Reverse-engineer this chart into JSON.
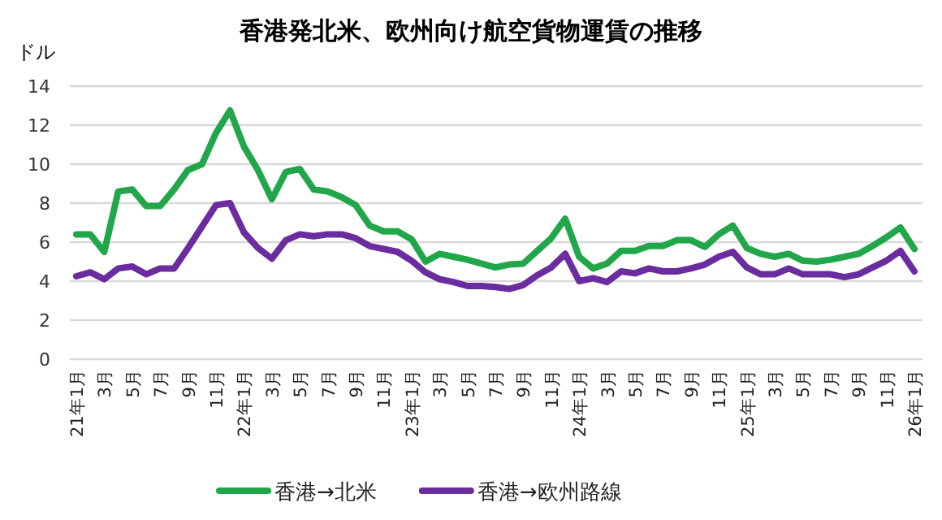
{
  "chart_data": {
    "type": "line",
    "title": "香港発北米、欧州向け航空貨物運賃の推移",
    "ylabel": "ドル",
    "categories": [
      "21年1月",
      null,
      "3月",
      null,
      "5月",
      null,
      "7月",
      null,
      "9月",
      null,
      "11月",
      null,
      "22年1月",
      null,
      "3月",
      null,
      "5月",
      null,
      "7月",
      null,
      "9月",
      null,
      "11月",
      null,
      "23年1月",
      null,
      "3月",
      null,
      "5月",
      null,
      "7月",
      null,
      "9月",
      null,
      "11月",
      null,
      "24年1月",
      null,
      "3月",
      null,
      "5月",
      null,
      "7月",
      null,
      "9月",
      null,
      "11月",
      null,
      "25年1月",
      null,
      "3月",
      null,
      "5月",
      null,
      "7月",
      null,
      "9月",
      null,
      "11月",
      null,
      "26年1月"
    ],
    "series": [
      {
        "name": "香港→北米",
        "color": "#21a649",
        "values": [
          6.4,
          6.4,
          5.5,
          8.6,
          8.7,
          7.85,
          7.85,
          8.7,
          9.7,
          10.0,
          11.6,
          12.75,
          10.9,
          9.7,
          8.2,
          9.6,
          9.75,
          8.7,
          8.6,
          8.3,
          7.9,
          6.85,
          6.55,
          6.55,
          6.15,
          5.0,
          5.4,
          5.25,
          5.1,
          4.9,
          4.7,
          4.85,
          4.9,
          5.55,
          6.2,
          7.2,
          5.25,
          4.65,
          4.9,
          5.55,
          5.55,
          5.8,
          5.8,
          6.1,
          6.1,
          5.75,
          6.4,
          6.85,
          5.7,
          5.4,
          5.25,
          5.4,
          5.05,
          5.0,
          5.1,
          5.25,
          5.4,
          5.8,
          6.25,
          6.75,
          5.65
        ]
      },
      {
        "name": "香港→欧州路線",
        "color": "#6a2c9e",
        "values": [
          4.25,
          4.45,
          4.1,
          4.65,
          4.75,
          4.35,
          4.65,
          4.65,
          5.7,
          6.8,
          7.9,
          8.0,
          6.5,
          5.7,
          5.15,
          6.1,
          6.4,
          6.3,
          6.4,
          6.4,
          6.2,
          5.8,
          5.65,
          5.5,
          5.05,
          4.45,
          4.1,
          3.95,
          3.75,
          3.75,
          3.7,
          3.6,
          3.8,
          4.3,
          4.7,
          5.4,
          4.0,
          4.15,
          3.95,
          4.5,
          4.4,
          4.65,
          4.5,
          4.5,
          4.65,
          4.85,
          5.25,
          5.5,
          4.7,
          4.35,
          4.35,
          4.65,
          4.35,
          4.35,
          4.35,
          4.2,
          4.35,
          4.7,
          5.05,
          5.55,
          4.5
        ]
      }
    ],
    "ylim": [
      0,
      14
    ],
    "yticks": [
      0,
      2,
      4,
      6,
      8,
      10,
      12,
      14
    ],
    "grid": "y",
    "legend": "bottom",
    "line_style": "solid"
  }
}
